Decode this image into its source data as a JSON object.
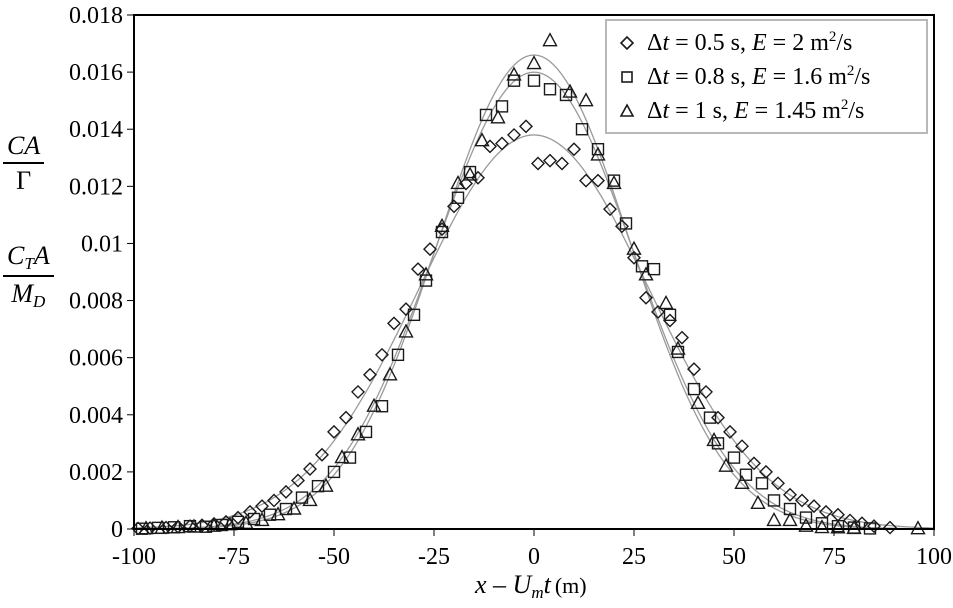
{
  "chart_data": {
    "type": "scatter",
    "title": "",
    "xlabel": "x − U_m t (m)",
    "xlabel_parts": {
      "var": "x",
      "minus": " – ",
      "U": "U",
      "sub": "m",
      "t": "t",
      "unit": "(m)"
    },
    "ylabel": [
      "CA / Γ",
      "C_T A / M_D"
    ],
    "ylabel_parts": {
      "top": {
        "num": "CA",
        "den": "Γ"
      },
      "bottom": {
        "num_main": "C",
        "num_sub": "T",
        "num_rest": "A",
        "den_main": "M",
        "den_sub": "D"
      }
    },
    "xlim": [
      -100,
      100
    ],
    "ylim": [
      0,
      0.018
    ],
    "xticks": [
      -100,
      -75,
      -50,
      -25,
      0,
      25,
      50,
      75,
      100
    ],
    "xtick_labels": [
      "-100",
      "-75",
      "-50",
      "-25",
      "0",
      "25",
      "50",
      "75",
      "100"
    ],
    "yticks": [
      0,
      0.002,
      0.004,
      0.006,
      0.008,
      0.01,
      0.012,
      0.014,
      0.016,
      0.018
    ],
    "ytick_labels": [
      "0",
      "0.002",
      "0.004",
      "0.006",
      "0.008",
      "0.01",
      "0.012",
      "0.014",
      "0.016",
      "0.018"
    ],
    "grid": false,
    "legend_position": "upper right",
    "series": [
      {
        "name": "Δt = 0.5 s, E = 2 m²/s",
        "marker": "diamond",
        "fit_peak": 0.0138,
        "fit_sigma": 28.9,
        "points": [
          [
            -99,
            2e-05
          ],
          [
            -96,
            3e-05
          ],
          [
            -92,
            5e-05
          ],
          [
            -89,
            8e-05
          ],
          [
            -86,
            0.0001
          ],
          [
            -83,
            0.00013
          ],
          [
            -80,
            0.00018
          ],
          [
            -77,
            0.00025
          ],
          [
            -74,
            0.0004
          ],
          [
            -71,
            0.0006
          ],
          [
            -68,
            0.0008
          ],
          [
            -65,
            0.001
          ],
          [
            -62,
            0.0013
          ],
          [
            -59,
            0.0017
          ],
          [
            -56,
            0.0021
          ],
          [
            -53,
            0.0026
          ],
          [
            -50,
            0.0034
          ],
          [
            -47,
            0.0039
          ],
          [
            -44,
            0.0048
          ],
          [
            -41,
            0.0054
          ],
          [
            -38,
            0.0061
          ],
          [
            -35,
            0.0072
          ],
          [
            -32,
            0.0077
          ],
          [
            -29,
            0.0091
          ],
          [
            -26,
            0.0098
          ],
          [
            -23,
            0.0105
          ],
          [
            -20,
            0.0113
          ],
          [
            -17,
            0.0121
          ],
          [
            -14,
            0.0123
          ],
          [
            -11,
            0.0134
          ],
          [
            -8,
            0.0135
          ],
          [
            -5,
            0.0138
          ],
          [
            -2,
            0.0141
          ],
          [
            1,
            0.0128
          ],
          [
            4,
            0.0129
          ],
          [
            7,
            0.0128
          ],
          [
            10,
            0.0133
          ],
          [
            13,
            0.0122
          ],
          [
            16,
            0.0122
          ],
          [
            19,
            0.0112
          ],
          [
            22,
            0.0106
          ],
          [
            25,
            0.0095
          ],
          [
            28,
            0.0081
          ],
          [
            31,
            0.0076
          ],
          [
            34,
            0.0073
          ],
          [
            37,
            0.0067
          ],
          [
            40,
            0.0056
          ],
          [
            43,
            0.0048
          ],
          [
            46,
            0.0039
          ],
          [
            49,
            0.0034
          ],
          [
            52,
            0.0029
          ],
          [
            55,
            0.0023
          ],
          [
            58,
            0.002
          ],
          [
            61,
            0.0016
          ],
          [
            64,
            0.0012
          ],
          [
            67,
            0.001
          ],
          [
            70,
            0.0008
          ],
          [
            73,
            0.0006
          ],
          [
            76,
            0.0005
          ],
          [
            79,
            0.0003
          ],
          [
            82,
            0.0002
          ],
          [
            85,
            0.0001
          ],
          [
            89,
            5e-05
          ]
        ]
      },
      {
        "name": "Δt = 0.8 s, E = 1.6 m²/s",
        "marker": "square",
        "fit_peak": 0.016,
        "fit_sigma": 24.9,
        "points": [
          [
            -98,
            1e-05
          ],
          [
            -94,
            4e-05
          ],
          [
            -90,
            6e-05
          ],
          [
            -86,
            0.0001
          ],
          [
            -82,
            8e-05
          ],
          [
            -78,
            0.00014
          ],
          [
            -74,
            0.00025
          ],
          [
            -70,
            0.00035
          ],
          [
            -66,
            0.0005
          ],
          [
            -62,
            0.0007
          ],
          [
            -58,
            0.0011
          ],
          [
            -54,
            0.0015
          ],
          [
            -50,
            0.002
          ],
          [
            -46,
            0.0025
          ],
          [
            -42,
            0.0034
          ],
          [
            -38,
            0.0043
          ],
          [
            -34,
            0.0061
          ],
          [
            -30,
            0.0075
          ],
          [
            -27,
            0.0087
          ],
          [
            -23,
            0.0104
          ],
          [
            -19,
            0.0116
          ],
          [
            -16,
            0.0125
          ],
          [
            -12,
            0.0145
          ],
          [
            -8,
            0.0148
          ],
          [
            -5,
            0.0157
          ],
          [
            0,
            0.0157
          ],
          [
            4,
            0.0154
          ],
          [
            8,
            0.0152
          ],
          [
            12,
            0.014
          ],
          [
            16,
            0.0133
          ],
          [
            20,
            0.0122
          ],
          [
            23,
            0.0107
          ],
          [
            27,
            0.0092
          ],
          [
            30,
            0.0091
          ],
          [
            34,
            0.0075
          ],
          [
            36,
            0.0062
          ],
          [
            40,
            0.0049
          ],
          [
            44,
            0.0039
          ],
          [
            46,
            0.003
          ],
          [
            50,
            0.0025
          ],
          [
            53,
            0.0019
          ],
          [
            57,
            0.0016
          ],
          [
            60,
            0.001
          ],
          [
            64,
            0.0007
          ],
          [
            68,
            0.0004
          ],
          [
            72,
            0.0002
          ],
          [
            76,
            0.0001
          ],
          [
            80,
            5e-05
          ],
          [
            84,
            2e-05
          ]
        ]
      },
      {
        "name": "Δt = 1 s, E = 1.45 m²/s",
        "marker": "triangle",
        "fit_peak": 0.0166,
        "fit_sigma": 24.0,
        "points": [
          [
            -97,
            1e-05
          ],
          [
            -93,
            3e-05
          ],
          [
            -89,
            5e-05
          ],
          [
            -85,
            7e-05
          ],
          [
            -80,
            0.0001
          ],
          [
            -76,
            0.00015
          ],
          [
            -72,
            0.0002
          ],
          [
            -68,
            0.0003
          ],
          [
            -64,
            0.0005
          ],
          [
            -60,
            0.0007
          ],
          [
            -56,
            0.001
          ],
          [
            -52,
            0.0015
          ],
          [
            -48,
            0.0025
          ],
          [
            -44,
            0.0033
          ],
          [
            -40,
            0.0043
          ],
          [
            -36,
            0.0054
          ],
          [
            -32,
            0.0069
          ],
          [
            -27,
            0.0089
          ],
          [
            -23,
            0.0106
          ],
          [
            -19,
            0.0121
          ],
          [
            -16,
            0.0124
          ],
          [
            -13,
            0.0136
          ],
          [
            -9,
            0.0144
          ],
          [
            -5,
            0.0159
          ],
          [
            0,
            0.0163
          ],
          [
            4,
            0.0171
          ],
          [
            9,
            0.0153
          ],
          [
            13,
            0.015
          ],
          [
            16,
            0.0131
          ],
          [
            20,
            0.0121
          ],
          [
            25,
            0.0098
          ],
          [
            28,
            0.0089
          ],
          [
            33,
            0.0079
          ],
          [
            36,
            0.0063
          ],
          [
            41,
            0.0044
          ],
          [
            45,
            0.0031
          ],
          [
            48,
            0.0022
          ],
          [
            52,
            0.0016
          ],
          [
            56,
            0.0009
          ],
          [
            60,
            0.0003
          ],
          [
            64,
            0.0003
          ],
          [
            68,
            0.0001
          ],
          [
            72,
            5e-05
          ],
          [
            76,
            4e-05
          ],
          [
            80,
            2e-05
          ],
          [
            96,
            1e-05
          ]
        ]
      }
    ]
  },
  "legend": {
    "items": [
      {
        "marker": "diamond",
        "dt_label": "Δ",
        "t": "t",
        "eq1": " = 0.5 s, ",
        "E": "E",
        "eq2": " = 2 m",
        "sup": "2",
        "tail": "/s"
      },
      {
        "marker": "square",
        "dt_label": "Δ",
        "t": "t",
        "eq1": " = 0.8 s, ",
        "E": "E",
        "eq2": " = 1.6 m",
        "sup": "2",
        "tail": "/s"
      },
      {
        "marker": "triangle",
        "dt_label": "Δ",
        "t": "t",
        "eq1": " = 1 s, ",
        "E": "E",
        "eq2": " = 1.45 m",
        "sup": "2",
        "tail": "/s"
      }
    ]
  },
  "colors": {
    "axis": "#000000",
    "marker_stroke": "#1a1a1a",
    "fit_line": "#9a9a9a",
    "legend_border": "#b8b8b8",
    "background": "#ffffff"
  }
}
